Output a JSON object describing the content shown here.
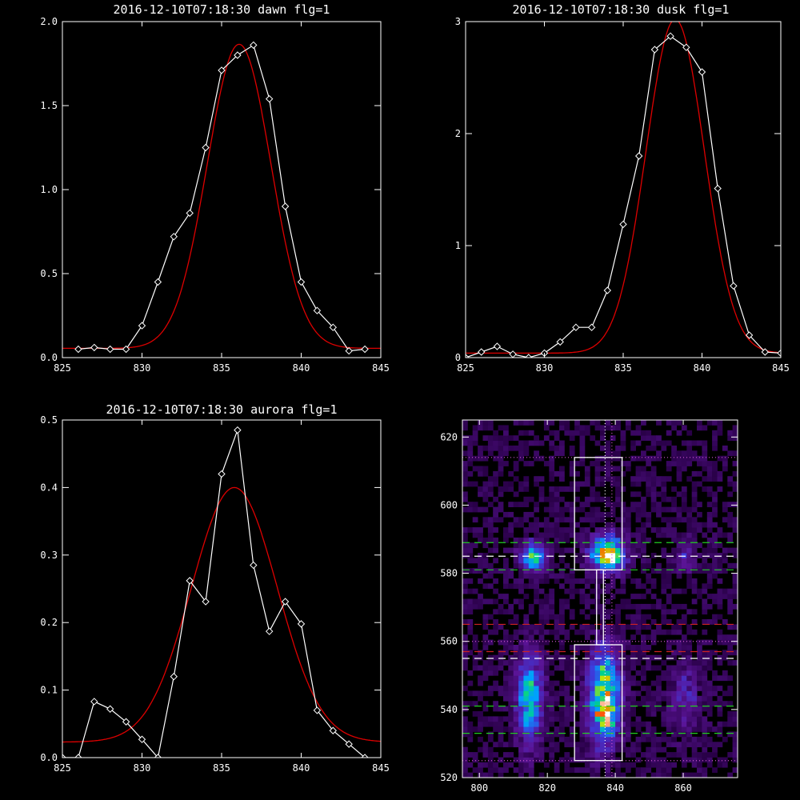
{
  "colors": {
    "background": "#000000",
    "axes": "#ffffff",
    "data_line": "#ffffff",
    "fit_line": "#dd0000",
    "green_dash": "#22cc22",
    "red_dash": "#cc2222",
    "magenta_dot": "#cc55cc",
    "white_dash": "#ffffff"
  },
  "chart_data": [
    {
      "type": "line",
      "title": "2016-12-10T07:18:30 dawn flg=1",
      "xlim": [
        825,
        845
      ],
      "ylim": [
        0,
        2.0
      ],
      "xticks": [
        825,
        830,
        835,
        840,
        845
      ],
      "yticks": [
        0.0,
        0.5,
        1.0,
        1.5,
        2.0
      ],
      "ytick_labels": [
        "0.0",
        "0.5",
        "1.0",
        "1.5",
        "2.0"
      ],
      "series": [
        {
          "role": "data",
          "marker": "diamond",
          "x": [
            826,
            827,
            828,
            829,
            830,
            831,
            832,
            833,
            834,
            835,
            836,
            837,
            838,
            839,
            840,
            841,
            842,
            843,
            844
          ],
          "y": [
            0.05,
            0.06,
            0.05,
            0.05,
            0.19,
            0.45,
            0.72,
            0.86,
            1.25,
            1.71,
            1.8,
            1.86,
            1.54,
            0.9,
            0.45,
            0.28,
            0.18,
            0.04,
            0.05
          ]
        },
        {
          "role": "fit",
          "shape": "gaussian",
          "amplitude": 1.81,
          "center": 836.1,
          "sigma": 2.0,
          "baseline": 0.055
        }
      ]
    },
    {
      "type": "line",
      "title": "2016-12-10T07:18:30 dusk flg=1",
      "xlim": [
        825,
        845
      ],
      "ylim": [
        0,
        3
      ],
      "xticks": [
        825,
        830,
        835,
        840,
        845
      ],
      "yticks": [
        0,
        1,
        2,
        3
      ],
      "ytick_labels": [
        "0",
        "1",
        "2",
        "3"
      ],
      "series": [
        {
          "role": "data",
          "marker": "diamond",
          "x": [
            825,
            826,
            827,
            828,
            829,
            830,
            831,
            832,
            833,
            834,
            835,
            836,
            837,
            838,
            839,
            840,
            841,
            842,
            843,
            844,
            845
          ],
          "y": [
            0.0,
            0.05,
            0.1,
            0.03,
            0.0,
            0.04,
            0.14,
            0.27,
            0.27,
            0.6,
            1.19,
            1.8,
            2.75,
            2.87,
            2.77,
            2.55,
            1.51,
            0.64,
            0.2,
            0.05,
            0.04
          ]
        },
        {
          "role": "fit",
          "shape": "gaussian",
          "amplitude": 2.98,
          "center": 838.3,
          "sigma": 1.85,
          "baseline": 0.04
        }
      ]
    },
    {
      "type": "line",
      "title": "2016-12-10T07:18:30 aurora flg=1",
      "xlim": [
        825,
        845
      ],
      "ylim": [
        0,
        0.5
      ],
      "xticks": [
        825,
        830,
        835,
        840,
        845
      ],
      "yticks": [
        0.0,
        0.1,
        0.2,
        0.3,
        0.4,
        0.5
      ],
      "ytick_labels": [
        "0.0",
        "0.1",
        "0.2",
        "0.3",
        "0.4",
        "0.5"
      ],
      "series": [
        {
          "role": "data",
          "marker": "diamond",
          "x": [
            825,
            826,
            827,
            828,
            829,
            830,
            831,
            832,
            833,
            834,
            835,
            836,
            837,
            838,
            839,
            840,
            841,
            842,
            843,
            844
          ],
          "y": [
            0.0,
            0.0,
            0.083,
            0.072,
            0.053,
            0.027,
            0.0,
            0.12,
            0.262,
            0.231,
            0.42,
            0.485,
            0.285,
            0.187,
            0.231,
            0.198,
            0.07,
            0.04,
            0.02,
            0.0
          ]
        },
        {
          "role": "fit",
          "shape": "gaussian",
          "amplitude": 0.377,
          "center": 835.8,
          "sigma": 2.7,
          "baseline": 0.023
        }
      ]
    },
    {
      "type": "heatmap",
      "title": "",
      "xlim": [
        795,
        876
      ],
      "ylim": [
        520,
        625
      ],
      "xticks": [
        800,
        820,
        840,
        860
      ],
      "yticks": [
        520,
        540,
        560,
        580,
        600,
        620
      ],
      "blobs": [
        {
          "x": 815,
          "y": 584,
          "sx": 2.5,
          "sy": 3.0,
          "amp": 0.55
        },
        {
          "x": 837,
          "y": 585,
          "sx": 3.5,
          "sy": 3.5,
          "amp": 0.75
        },
        {
          "x": 838,
          "y": 584,
          "sx": 1.0,
          "sy": 1.3,
          "amp": 0.6
        },
        {
          "x": 860,
          "y": 585,
          "sx": 2.0,
          "sy": 3.0,
          "amp": 0.25
        },
        {
          "x": 814,
          "y": 543,
          "sx": 2.5,
          "sy": 9.0,
          "amp": 0.55
        },
        {
          "x": 836,
          "y": 543,
          "sx": 3.0,
          "sy": 9.0,
          "amp": 0.8
        },
        {
          "x": 837,
          "y": 537,
          "sx": 2.0,
          "sy": 2.5,
          "amp": 0.25
        },
        {
          "x": 860,
          "y": 543,
          "sx": 3.0,
          "sy": 7.0,
          "amp": 0.2
        }
      ],
      "boxes": [
        {
          "x0": 828,
          "x1": 842,
          "y0": 581,
          "y1": 614
        },
        {
          "x0": 828,
          "x1": 842,
          "y0": 525,
          "y1": 559
        },
        {
          "x0": 834.5,
          "x1": 836.5,
          "y0": 559,
          "y1": 581
        }
      ],
      "hlines": [
        {
          "y": 589,
          "style": "green-dash"
        },
        {
          "y": 581,
          "style": "green-dash"
        },
        {
          "y": 541,
          "style": "green-dash"
        },
        {
          "y": 533,
          "style": "green-dash"
        },
        {
          "y": 585,
          "style": "white-dash"
        },
        {
          "y": 555,
          "style": "white-dash"
        },
        {
          "y": 565,
          "style": "red-dash"
        },
        {
          "y": 557,
          "style": "red-dash"
        },
        {
          "y": 614,
          "style": "magenta-dot"
        },
        {
          "y": 560,
          "style": "magenta-dot"
        },
        {
          "y": 525,
          "style": "magenta-dot"
        }
      ],
      "vlines": [
        {
          "x": 837,
          "style": "white-dot"
        },
        {
          "x": 839,
          "style": "magenta-dot"
        }
      ]
    }
  ]
}
